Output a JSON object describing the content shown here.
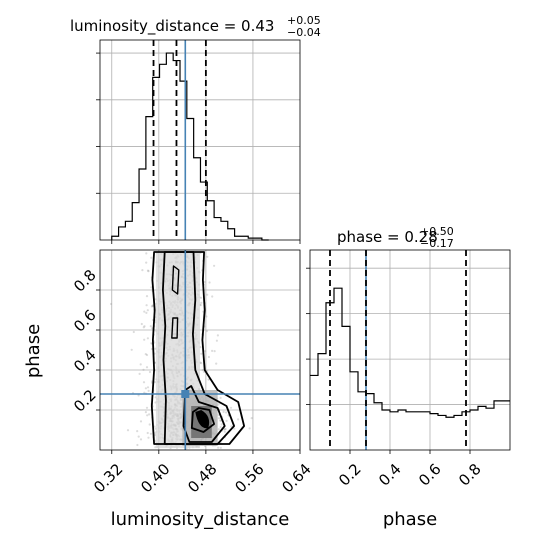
{
  "chart_data": {
    "type": "corner",
    "parameters": [
      "luminosity_distance",
      "phase"
    ],
    "truth": {
      "luminosity_distance": 0.445,
      "phase": 0.28
    },
    "panels": [
      {
        "name": "luminosity_distance-hist",
        "type": "histogram-step",
        "title": {
          "main": "luminosity_distance = 0.43",
          "sup": "+0.05",
          "sub": "−0.04"
        },
        "xlim": [
          0.3,
          0.64
        ],
        "ylim": [
          0,
          1.07
        ],
        "yticks": [
          0.25,
          0.5,
          0.75,
          1.0
        ],
        "bins": {
          "start": 0.32,
          "width": 0.0116,
          "values": [
            0.02,
            0.07,
            0.1,
            0.2,
            0.38,
            0.66,
            0.87,
            0.94,
            1.0,
            0.96,
            0.85,
            0.65,
            0.44,
            0.31,
            0.21,
            0.12,
            0.1,
            0.06,
            0.02,
            0.02,
            0.01,
            0.01,
            0.0
          ]
        },
        "quantiles": [
          0.391,
          0.43,
          0.48
        ]
      },
      {
        "name": "joint-density",
        "type": "contour",
        "xlim": [
          0.3,
          0.64
        ],
        "ylim": [
          0.0,
          1.0
        ],
        "xticks": [
          "0.32",
          "0.40",
          "0.48",
          "0.56",
          "0.64"
        ],
        "yticks": [
          "0.2",
          "0.4",
          "0.6",
          "0.8"
        ],
        "xlabel": "luminosity_distance",
        "ylabel": "phase"
      },
      {
        "name": "phase-hist",
        "type": "histogram-step",
        "title": {
          "main": "phase = 0.28",
          "sup": "+0.50",
          "sub": "−0.17"
        },
        "xlim": [
          0.0,
          1.0
        ],
        "ylim": [
          0,
          1.1
        ],
        "xticks": [
          "0.2",
          "0.4",
          "0.6",
          "0.8"
        ],
        "xlabel": "phase",
        "bins": {
          "start": 0.0,
          "width": 0.04,
          "values": [
            0.41,
            0.53,
            0.81,
            0.89,
            0.68,
            0.43,
            0.32,
            0.31,
            0.26,
            0.22,
            0.21,
            0.22,
            0.21,
            0.21,
            0.21,
            0.2,
            0.19,
            0.18,
            0.19,
            0.21,
            0.22,
            0.24,
            0.23,
            0.27,
            0.27
          ]
        },
        "quantiles": [
          0.1,
          0.28,
          0.78
        ]
      }
    ],
    "grid": true,
    "colors": {
      "truth": "#4682b4",
      "step": "#000000",
      "quantile": "#000000",
      "grid": "#b0b0b0"
    }
  }
}
